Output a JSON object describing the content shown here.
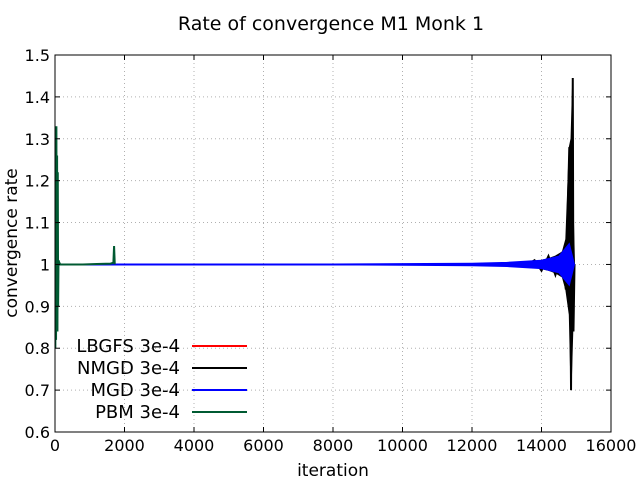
{
  "chart_data": {
    "type": "line",
    "title": "Rate of convergence M1 Monk 1",
    "xlabel": "iteration",
    "ylabel": "convergence rate",
    "xlim": [
      0,
      16000
    ],
    "ylim": [
      0.6,
      1.5
    ],
    "xticks": [
      0,
      2000,
      4000,
      6000,
      8000,
      10000,
      12000,
      14000,
      16000
    ],
    "yticks": [
      0.6,
      0.7,
      0.8,
      0.9,
      1.0,
      1.1,
      1.2,
      1.3,
      1.4,
      1.5
    ],
    "xtick_labels": [
      "0",
      "2000",
      "4000",
      "6000",
      "8000",
      "10000",
      "12000",
      "14000",
      "16000"
    ],
    "ytick_labels": [
      "0.6",
      "0.7",
      "0.8",
      "0.9",
      "1",
      "1.1",
      "1.2",
      "1.3",
      "1.4",
      "1.5"
    ],
    "grid": true,
    "legend_position": "bottom-left",
    "series": [
      {
        "name": "LBGFS 3e-4",
        "color": "#ff0000",
        "x": [
          0,
          5,
          10,
          15,
          20,
          25,
          30,
          40,
          50
        ],
        "y": [
          1.0,
          1.25,
          0.95,
          1.2,
          1.05,
          1.18,
          0.98,
          1.02,
          1.0
        ]
      },
      {
        "name": "NMGD 3e-4",
        "color": "#000000",
        "x": [
          13000,
          13500,
          13800,
          14000,
          14200,
          14400,
          14600,
          14700,
          14800,
          14850,
          14900,
          14920,
          14950
        ],
        "y": [
          1.0,
          0.995,
          1.01,
          0.985,
          1.02,
          0.975,
          1.03,
          0.94,
          1.28,
          0.7,
          1.445,
          0.84,
          1.0
        ],
        "envelope_upper": [
          1.002,
          1.004,
          1.006,
          1.01,
          1.014,
          1.02,
          1.03,
          1.06,
          1.28,
          1.3,
          1.445,
          1.1,
          1.0
        ],
        "envelope_lower": [
          0.998,
          0.996,
          0.994,
          0.99,
          0.986,
          0.98,
          0.97,
          0.94,
          0.88,
          0.7,
          0.84,
          0.9,
          1.0
        ]
      },
      {
        "name": "MGD 3e-4",
        "color": "#0000ff",
        "x": [
          0,
          2000,
          4000,
          6000,
          8000,
          10000,
          12000,
          13000,
          14000,
          14500,
          14800,
          14950
        ],
        "y": [
          1.0,
          1.0,
          1.0,
          1.0,
          1.0,
          1.0,
          1.0,
          1.0,
          1.0,
          1.0,
          1.0,
          1.0
        ],
        "envelope_upper": [
          1.001,
          1.001,
          1.001,
          1.001,
          1.001,
          1.002,
          1.003,
          1.005,
          1.01,
          1.02,
          1.05,
          1.0
        ],
        "envelope_lower": [
          0.999,
          0.999,
          0.999,
          0.999,
          0.999,
          0.998,
          0.997,
          0.995,
          0.99,
          0.98,
          0.95,
          1.0
        ]
      },
      {
        "name": "PBM 3e-4",
        "color": "#005a32",
        "x": [
          0,
          10,
          20,
          30,
          40,
          50,
          60,
          70,
          80,
          90,
          100,
          120,
          150,
          200,
          400,
          800,
          1200,
          1600,
          1680,
          1700,
          1720
        ],
        "y": [
          1.0,
          0.8,
          1.3,
          0.82,
          1.33,
          0.87,
          1.26,
          0.84,
          1.22,
          0.9,
          1.01,
          1.005,
          1.0,
          1.0,
          1.0,
          1.0,
          1.001,
          1.002,
          1.004,
          1.044,
          1.0
        ]
      }
    ]
  }
}
